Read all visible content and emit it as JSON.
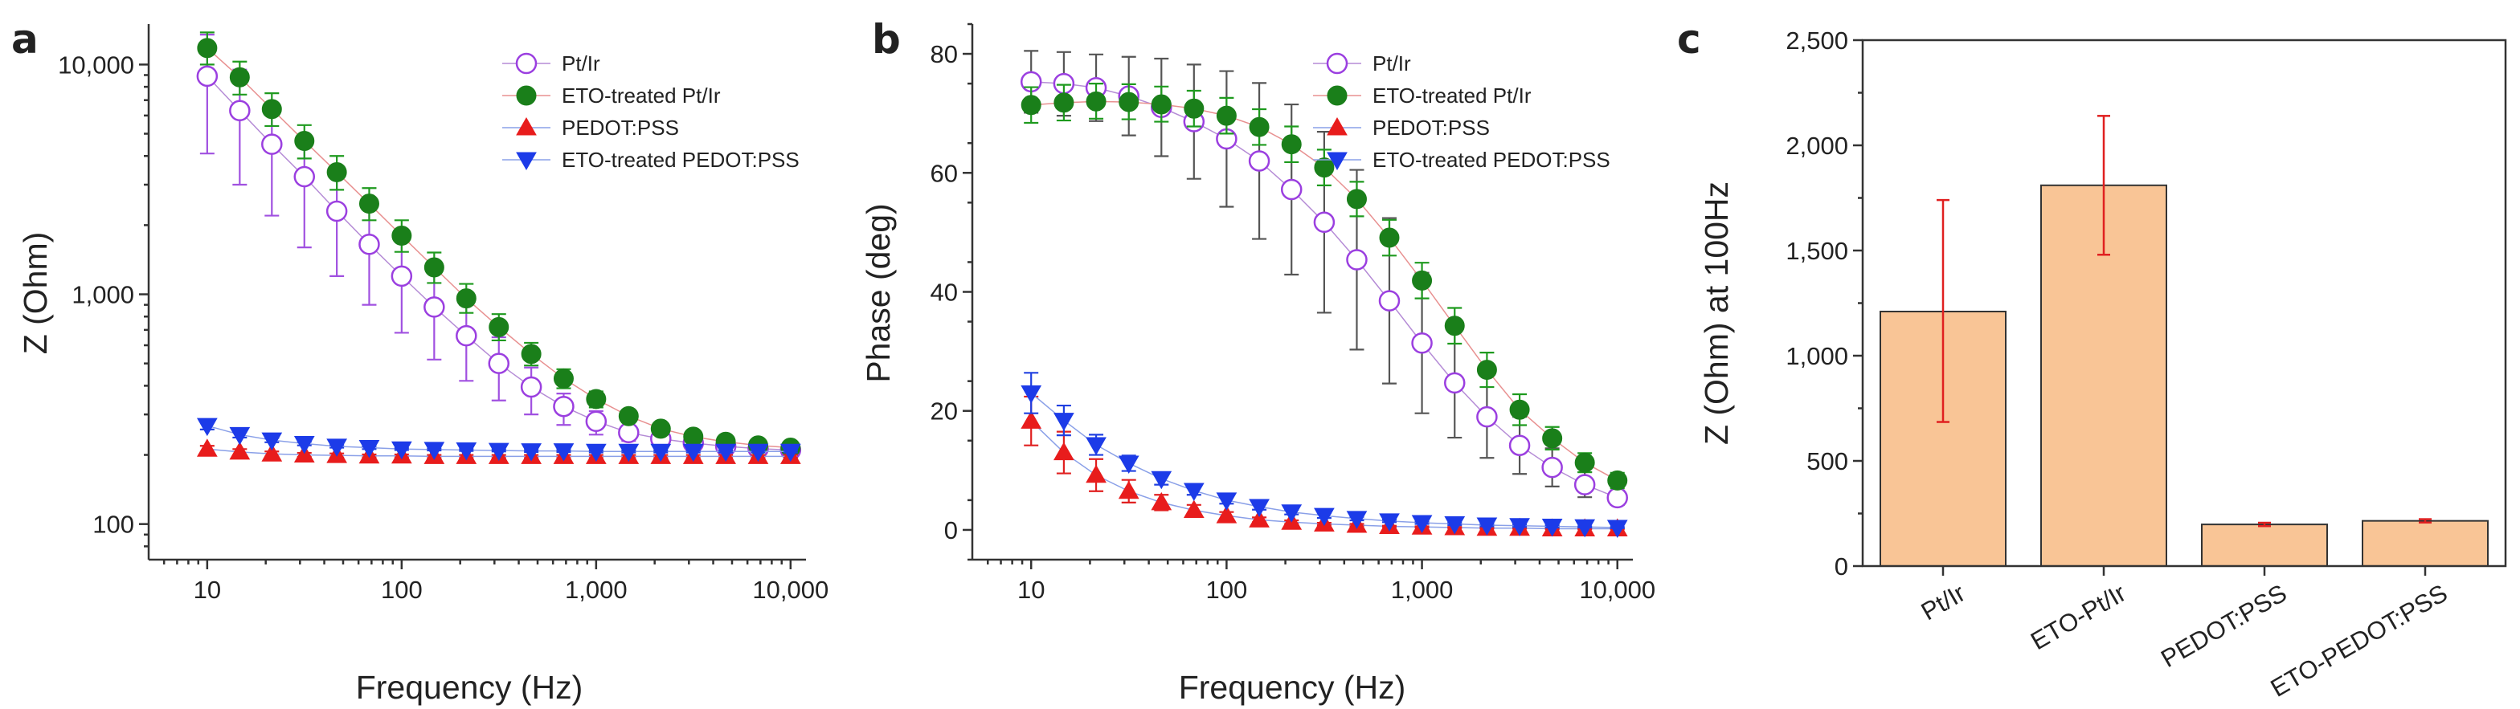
{
  "panels": {
    "a": {
      "letter": "a"
    },
    "b": {
      "letter": "b"
    },
    "c": {
      "letter": "c"
    }
  },
  "colors": {
    "pt_ir": "#9b3fe0",
    "eto_pt_ir": "#1a7f1a",
    "pedot": "#e81c1c",
    "eto_pedot": "#1c3be8",
    "bar_fill": "#f9c596",
    "bar_error": "#e02020",
    "line_pt_ir": "#b58cd6",
    "line_eto_pt_ir": "#e89090",
    "line_pedot": "#8aa0e8",
    "line_eto_pedot": "#8aa0e8",
    "err_pt_ir": "#a050e0",
    "err_eto_pt_ir": "#1e9a1e",
    "err_pedot": "#e02020",
    "err_eto_pedot": "#2040e0"
  },
  "chart_data": [
    {
      "id": "a",
      "type": "line",
      "xscale": "log",
      "yscale": "log",
      "xlabel": "Frequency (Hz)",
      "ylabel": "Z (Ohm)",
      "xlim": [
        5,
        12000
      ],
      "ylim": [
        70,
        15000
      ],
      "xticks": [
        10,
        100,
        1000,
        10000
      ],
      "xtick_labels": [
        "10",
        "100",
        "1,000",
        "10,000"
      ],
      "yticks": [
        100,
        1000,
        10000
      ],
      "ytick_labels": [
        "100",
        "1,000",
        "10,000"
      ],
      "legend_position": "top-right",
      "x": [
        10,
        14.7,
        21.5,
        31.6,
        46.4,
        68.1,
        100,
        147,
        215,
        316,
        464,
        681,
        1000,
        1470,
        2150,
        3160,
        4640,
        6810,
        10000
      ],
      "series": [
        {
          "name": "Pt/Ir",
          "marker": "circle-open",
          "color_key": "pt_ir",
          "values": [
            8900,
            6300,
            4500,
            3250,
            2300,
            1650,
            1200,
            880,
            660,
            500,
            395,
            325,
            280,
            250,
            235,
            225,
            218,
            213,
            210
          ],
          "err_low": [
            4100,
            3000,
            2200,
            1600,
            1200,
            900,
            680,
            520,
            420,
            345,
            300,
            270,
            245,
            230,
            222,
            216,
            211,
            208,
            206
          ],
          "err_high": [
            13500,
            9500,
            6700,
            4900,
            3500,
            2500,
            1750,
            1250,
            900,
            650,
            480,
            370,
            310,
            268,
            245,
            232,
            222,
            216,
            213
          ]
        },
        {
          "name": "ETO-treated Pt/Ir",
          "marker": "circle-filled",
          "color_key": "eto_pt_ir",
          "values": [
            11800,
            8800,
            6400,
            4650,
            3400,
            2480,
            1800,
            1310,
            960,
            720,
            550,
            430,
            350,
            295,
            260,
            240,
            228,
            220,
            215
          ],
          "err_low": [
            10000,
            7400,
            5400,
            3900,
            2850,
            2100,
            1530,
            1120,
            830,
            630,
            490,
            390,
            322,
            277,
            248,
            232,
            222,
            215,
            211
          ],
          "err_high": [
            13800,
            10300,
            7500,
            5450,
            4000,
            2900,
            2100,
            1520,
            1110,
            820,
            615,
            472,
            378,
            313,
            272,
            248,
            234,
            225,
            219
          ]
        },
        {
          "name": "PEDOT:PSS",
          "marker": "triangle-up",
          "color_key": "pedot",
          "values": [
            212,
            206,
            202,
            200,
            199,
            198,
            198,
            197,
            197,
            197,
            197,
            197,
            197,
            197,
            197,
            197,
            197,
            197,
            197
          ],
          "err_low": [
            205,
            200,
            197,
            196,
            195,
            195,
            195,
            194,
            194,
            194,
            194,
            194,
            194,
            194,
            194,
            194,
            194,
            194,
            194
          ],
          "err_high": [
            219,
            212,
            207,
            204,
            203,
            201,
            201,
            200,
            200,
            200,
            200,
            200,
            200,
            200,
            200,
            200,
            200,
            200,
            200
          ]
        },
        {
          "name": "ETO-treated PEDOT:PSS",
          "marker": "triangle-down",
          "color_key": "eto_pedot",
          "values": [
            268,
            245,
            232,
            224,
            218,
            215,
            212,
            211,
            210,
            209,
            208,
            208,
            207,
            207,
            207,
            207,
            207,
            207,
            207
          ],
          "err_low": [
            258,
            238,
            227,
            220,
            215,
            212,
            210,
            209,
            208,
            207,
            206,
            206,
            205,
            205,
            205,
            205,
            205,
            205,
            205
          ],
          "err_high": [
            278,
            252,
            237,
            228,
            221,
            218,
            214,
            213,
            212,
            211,
            210,
            210,
            209,
            209,
            209,
            209,
            209,
            209,
            209
          ]
        }
      ]
    },
    {
      "id": "b",
      "type": "line",
      "xscale": "log",
      "yscale": "linear",
      "xlabel": "Frequency (Hz)",
      "ylabel": "Phase (deg)",
      "xlim": [
        5,
        12000
      ],
      "ylim": [
        -5,
        85
      ],
      "xticks": [
        10,
        100,
        1000,
        10000
      ],
      "xtick_labels": [
        "10",
        "100",
        "1,000",
        "10,000"
      ],
      "yticks": [
        0,
        20,
        40,
        60,
        80
      ],
      "ytick_labels": [
        "0",
        "20",
        "40",
        "60",
        "80"
      ],
      "legend_position": "top-right",
      "x": [
        10,
        14.7,
        21.5,
        31.6,
        46.4,
        68.1,
        100,
        147,
        215,
        316,
        464,
        681,
        1000,
        1470,
        2150,
        3160,
        4640,
        6810,
        10000
      ],
      "series": [
        {
          "name": "Pt/Ir",
          "marker": "circle-open",
          "color_key": "pt_ir",
          "error_color": "#555555",
          "values": [
            75.3,
            75.0,
            74.3,
            72.9,
            71.0,
            68.6,
            65.7,
            62.0,
            57.2,
            51.7,
            45.4,
            38.5,
            31.4,
            24.7,
            19.0,
            14.2,
            10.5,
            7.6,
            5.4
          ],
          "err_low": [
            70.1,
            69.6,
            68.7,
            66.3,
            62.8,
            59.0,
            54.3,
            48.9,
            42.9,
            36.5,
            30.3,
            24.6,
            19.6,
            15.5,
            12.1,
            9.4,
            7.3,
            5.5,
            4.2
          ],
          "err_high": [
            80.5,
            80.3,
            79.9,
            79.5,
            79.2,
            78.2,
            77.1,
            75.1,
            71.5,
            66.9,
            60.5,
            52.4,
            43.2,
            33.9,
            25.9,
            19.0,
            13.7,
            9.7,
            6.6
          ]
        },
        {
          "name": "ETO-treated Pt/Ir",
          "marker": "circle-filled",
          "color_key": "eto_pt_ir",
          "values": [
            71.4,
            71.8,
            72.0,
            71.9,
            71.5,
            70.8,
            69.6,
            67.7,
            64.8,
            60.9,
            55.6,
            49.1,
            41.9,
            34.3,
            26.9,
            20.2,
            15.4,
            11.3,
            8.3
          ],
          "err_low": [
            68.4,
            68.8,
            69.1,
            69.0,
            68.6,
            67.8,
            66.6,
            64.7,
            61.8,
            57.9,
            52.7,
            46.1,
            38.9,
            31.3,
            24.0,
            17.6,
            13.5,
            9.7,
            7.0
          ],
          "err_high": [
            74.4,
            74.8,
            75.0,
            74.9,
            74.5,
            73.8,
            72.6,
            70.7,
            67.8,
            63.9,
            58.5,
            52.1,
            44.9,
            37.3,
            29.8,
            22.8,
            17.3,
            12.9,
            9.6
          ]
        },
        {
          "name": "PEDOT:PSS",
          "marker": "triangle-up",
          "color_key": "pedot",
          "values": [
            18.3,
            13.0,
            9.2,
            6.5,
            4.6,
            3.3,
            2.4,
            1.7,
            1.3,
            1.0,
            0.8,
            0.6,
            0.5,
            0.4,
            0.3,
            0.3,
            0.2,
            0.2,
            0.2
          ],
          "err_low": [
            14.2,
            9.5,
            6.5,
            4.6,
            3.3,
            2.4,
            1.8,
            1.3,
            1.0,
            0.8,
            0.6,
            0.5,
            0.4,
            0.3,
            0.2,
            0.2,
            0.1,
            0.1,
            0.1
          ],
          "err_high": [
            22.4,
            16.5,
            11.9,
            8.4,
            5.9,
            4.2,
            3.0,
            2.1,
            1.6,
            1.2,
            1.0,
            0.7,
            0.6,
            0.5,
            0.4,
            0.4,
            0.3,
            0.3,
            0.3
          ]
        },
        {
          "name": "ETO-treated PEDOT:PSS",
          "marker": "triangle-down",
          "color_key": "eto_pedot",
          "values": [
            23.0,
            18.4,
            14.3,
            11.2,
            8.6,
            6.6,
            5.0,
            3.9,
            3.0,
            2.4,
            1.9,
            1.5,
            1.2,
            1.0,
            0.8,
            0.7,
            0.6,
            0.5,
            0.4
          ],
          "err_low": [
            19.6,
            15.9,
            12.6,
            9.9,
            7.6,
            5.9,
            4.4,
            3.4,
            2.6,
            2.0,
            1.6,
            1.3,
            1.0,
            0.8,
            0.6,
            0.5,
            0.4,
            0.4,
            0.3
          ],
          "err_high": [
            26.4,
            20.9,
            16.0,
            12.5,
            9.6,
            7.3,
            5.6,
            4.4,
            3.4,
            2.8,
            2.2,
            1.7,
            1.4,
            1.2,
            1.0,
            0.9,
            0.8,
            0.6,
            0.5
          ]
        }
      ]
    },
    {
      "id": "c",
      "type": "bar",
      "ylabel": "Z (Ohm) at 100Hz",
      "xlabel": "",
      "ylim": [
        0,
        2500
      ],
      "yticks": [
        0,
        500,
        1000,
        1500,
        2000,
        2500
      ],
      "ytick_labels": [
        "0",
        "500",
        "1,000",
        "1,500",
        "2,000",
        "2,500"
      ],
      "categories": [
        "Pt/Ir",
        "ETO-Pt/Ir",
        "PEDOT:PSS",
        "ETO-PEDOT:PSS"
      ],
      "values": [
        1210,
        1810,
        198,
        215
      ],
      "err_low": [
        685,
        1480,
        190,
        207
      ],
      "err_high": [
        1740,
        2140,
        206,
        223
      ]
    }
  ]
}
